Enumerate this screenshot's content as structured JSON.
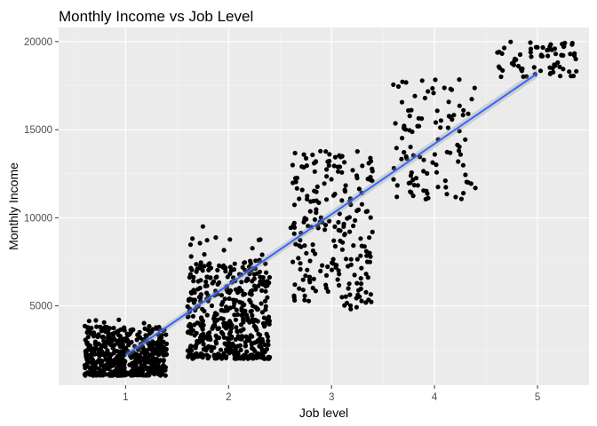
{
  "chart_data": {
    "type": "scatter",
    "title": "Monthly Income vs Job Level",
    "xlabel": "Job level",
    "ylabel": "Monthly Income",
    "xlim": [
      0.35,
      5.5
    ],
    "ylim": [
      500,
      20800
    ],
    "x_ticks": [
      1,
      2,
      3,
      4,
      5
    ],
    "y_ticks": [
      5000,
      10000,
      15000,
      20000
    ],
    "x_tick_labels": [
      "1",
      "2",
      "3",
      "4",
      "5"
    ],
    "y_tick_labels": [
      "5000",
      "10000",
      "15000",
      "20000"
    ],
    "grid": true,
    "legend": "none",
    "colors": {
      "panel_background": "#ebebeb",
      "grid_major": "#ffffff",
      "grid_minor": "#f5f5f5",
      "points": "#000000",
      "trend_line": "#3366ff",
      "confidence_band": "#999999"
    },
    "trend_line": {
      "x": [
        1,
        5
      ],
      "y": [
        2200,
        18200
      ]
    },
    "levels": [
      {
        "level": 1,
        "y_range": [
          1050,
          5000
        ],
        "count": 540,
        "jitter": 0.4
      },
      {
        "level": 2,
        "y_range": [
          2000,
          10000
        ],
        "count": 520,
        "jitter": 0.4
      },
      {
        "level": 3,
        "y_range": [
          4800,
          13800
        ],
        "count": 220,
        "jitter": 0.4
      },
      {
        "level": 4,
        "y_range": [
          11000,
          17900
        ],
        "count": 105,
        "jitter": 0.4
      },
      {
        "level": 5,
        "y_range": [
          18000,
          20000
        ],
        "count": 70,
        "jitter": 0.4
      }
    ]
  }
}
